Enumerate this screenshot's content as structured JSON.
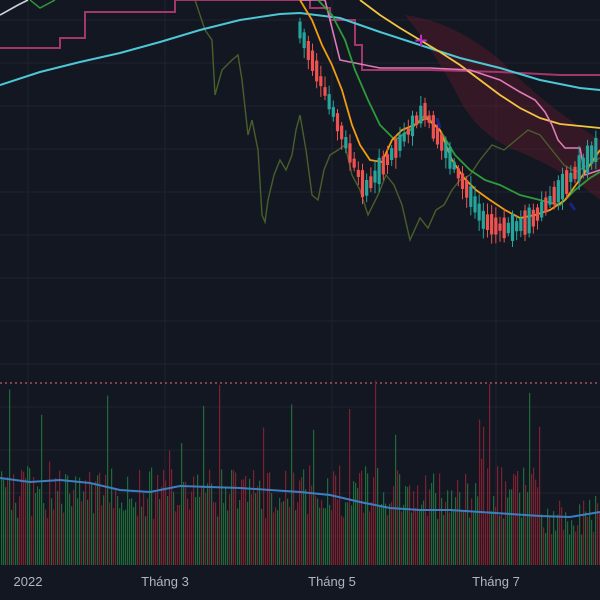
{
  "chart_data": {
    "type": "candlestick",
    "x_axis": {
      "tick_labels": [
        "2022",
        "Tháng 3",
        "Tháng 5",
        "Tháng 7"
      ]
    },
    "colors": {
      "background": "#131722",
      "grid": "#1f2330",
      "up": "#26a69a",
      "down": "#ef5350",
      "sma_long": "#4dc7d6",
      "ema_fast": "#f39c12",
      "ema_mid": "#2e9b3a",
      "ema_slow": "#f5c542",
      "stop_line": "#e07ab8",
      "ichimoku_line": "#a3366a",
      "lagging_line": "#4a5e2a",
      "signal_marker": "#c02fc0",
      "ref_line": "#e57373",
      "volume_ma": "#3d7fc1",
      "volume_up": "#1e6b3a",
      "volume_down": "#7d2130"
    },
    "series": [
      {
        "type": "candlestick",
        "values": [
          [
            100,
            102,
            97,
            101
          ],
          [
            101,
            104,
            99,
            103
          ],
          [
            103,
            105,
            98,
            99
          ],
          [
            99,
            101,
            95,
            96
          ],
          [
            96,
            98,
            90,
            92
          ],
          [
            92,
            95,
            88,
            94
          ],
          [
            94,
            96,
            86,
            88
          ],
          [
            88,
            90,
            84,
            86
          ],
          [
            86,
            92,
            84,
            91
          ],
          [
            91,
            94,
            88,
            89
          ],
          [
            89,
            93,
            87,
            92
          ],
          [
            92,
            95,
            90,
            94
          ],
          [
            94,
            96,
            88,
            90
          ],
          [
            90,
            91,
            83,
            85
          ],
          [
            85,
            88,
            82,
            87
          ],
          [
            87,
            89,
            80,
            81
          ],
          [
            81,
            84,
            78,
            83
          ],
          [
            83,
            86,
            80,
            82
          ],
          [
            82,
            85,
            79,
            84
          ],
          [
            84,
            87,
            83,
            86
          ],
          [
            86,
            88,
            84,
            85
          ],
          [
            85,
            87,
            82,
            83
          ],
          [
            83,
            86,
            81,
            85
          ],
          [
            85,
            88,
            84,
            87
          ]
        ]
      },
      {
        "type": "volume",
        "values": [
          52,
          48,
          61,
          39,
          44,
          57,
          70,
          33,
          41,
          46,
          38,
          55,
          62,
          49,
          36,
          58,
          43,
          50,
          47,
          35,
          40,
          53,
          45,
          60
        ]
      },
      {
        "type": "line",
        "values": [
          96,
          97,
          98,
          97,
          95,
          94,
          93,
          91,
          90,
          90,
          90,
          91,
          91,
          89,
          88,
          87,
          86,
          85,
          85,
          85,
          85,
          85,
          85,
          86
        ]
      }
    ]
  }
}
